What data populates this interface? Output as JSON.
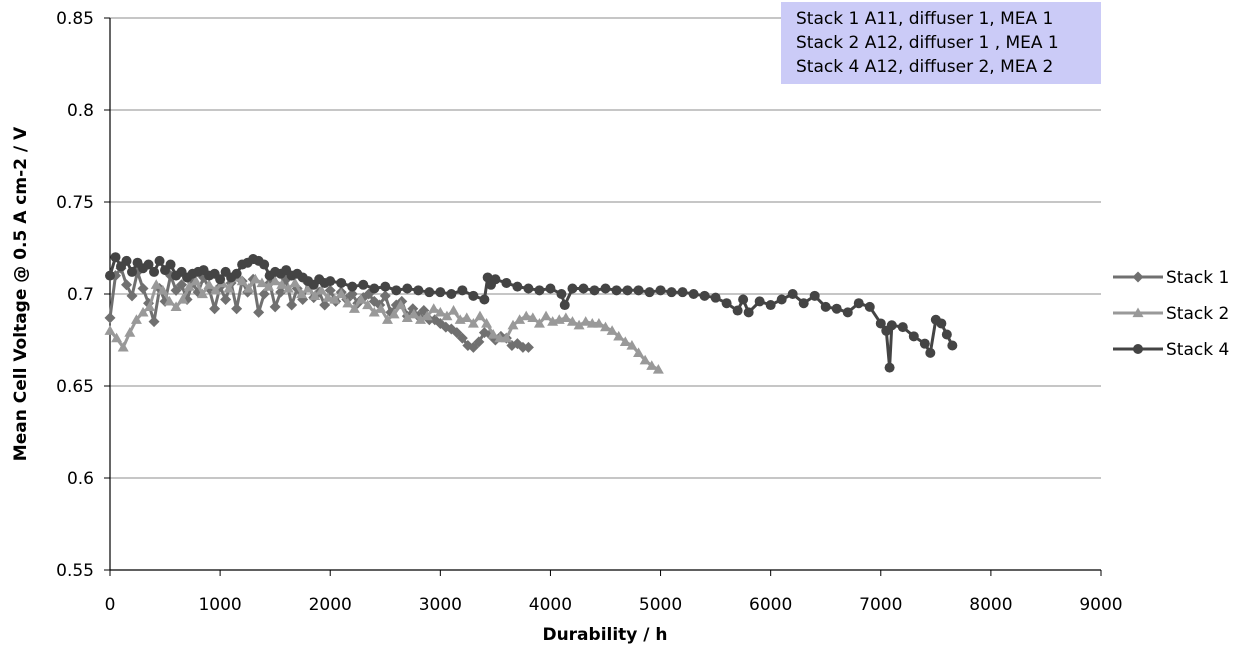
{
  "chart_data": {
    "type": "line",
    "title": "",
    "xlabel": "Durability / h",
    "ylabel": "Mean Cell Voltage @ 0.5 A cm-2 / V",
    "xlim": [
      0,
      9000
    ],
    "ylim": [
      0.55,
      0.85
    ],
    "xticks": [
      0,
      1000,
      2000,
      3000,
      4000,
      5000,
      6000,
      7000,
      8000,
      9000
    ],
    "yticks": [
      "0.55",
      "0.6",
      "0.65",
      "0.7",
      "0.75",
      "0.8",
      "0.85"
    ],
    "grid": "horizontal",
    "legend_position": "right",
    "annotation": [
      "Stack 1 A11, diffuser 1, MEA 1",
      "Stack 2 A12, diffuser 1 , MEA 1",
      "Stack 4 A12, diffuser 2, MEA 2"
    ],
    "series": [
      {
        "name": "Stack 1",
        "marker": "diamond",
        "color": "#707070",
        "x": [
          0,
          50,
          100,
          150,
          200,
          250,
          300,
          350,
          400,
          450,
          500,
          550,
          600,
          650,
          700,
          750,
          800,
          850,
          900,
          950,
          1000,
          1050,
          1100,
          1150,
          1200,
          1250,
          1300,
          1350,
          1400,
          1450,
          1500,
          1550,
          1600,
          1650,
          1700,
          1750,
          1800,
          1850,
          1900,
          1950,
          2000,
          2050,
          2100,
          2150,
          2200,
          2250,
          2300,
          2350,
          2400,
          2450,
          2500,
          2550,
          2600,
          2650,
          2700,
          2750,
          2800,
          2850,
          2900,
          2950,
          3000,
          3050,
          3100,
          3150,
          3200,
          3250,
          3300,
          3350,
          3400,
          3450,
          3500,
          3550,
          3600,
          3650,
          3700,
          3750,
          3800
        ],
        "values": [
          0.687,
          0.71,
          0.714,
          0.705,
          0.699,
          0.712,
          0.703,
          0.695,
          0.685,
          0.703,
          0.696,
          0.71,
          0.702,
          0.705,
          0.697,
          0.706,
          0.701,
          0.709,
          0.703,
          0.692,
          0.704,
          0.697,
          0.706,
          0.692,
          0.707,
          0.701,
          0.708,
          0.69,
          0.7,
          0.706,
          0.693,
          0.701,
          0.708,
          0.694,
          0.703,
          0.697,
          0.706,
          0.698,
          0.701,
          0.694,
          0.702,
          0.696,
          0.701,
          0.697,
          0.7,
          0.695,
          0.698,
          0.7,
          0.696,
          0.694,
          0.699,
          0.69,
          0.694,
          0.696,
          0.688,
          0.692,
          0.688,
          0.691,
          0.686,
          0.686,
          0.684,
          0.682,
          0.681,
          0.679,
          0.676,
          0.672,
          0.671,
          0.674,
          0.679,
          0.678,
          0.675,
          0.677,
          0.676,
          0.672,
          0.673,
          0.671,
          0.671
        ]
      },
      {
        "name": "Stack 2",
        "marker": "triangle",
        "color": "#999999",
        "x": [
          0,
          60,
          120,
          180,
          240,
          300,
          360,
          420,
          480,
          540,
          600,
          660,
          720,
          780,
          840,
          900,
          960,
          1020,
          1080,
          1140,
          1200,
          1260,
          1320,
          1380,
          1440,
          1500,
          1560,
          1620,
          1680,
          1740,
          1800,
          1860,
          1920,
          1980,
          2040,
          2100,
          2160,
          2220,
          2280,
          2340,
          2400,
          2460,
          2520,
          2580,
          2640,
          2700,
          2760,
          2820,
          2880,
          2940,
          3000,
          3060,
          3120,
          3180,
          3240,
          3300,
          3360,
          3420,
          3480,
          3540,
          3600,
          3660,
          3720,
          3780,
          3840,
          3900,
          3960,
          4020,
          4080,
          4140,
          4200,
          4260,
          4320,
          4380,
          4440,
          4500,
          4560,
          4620,
          4680,
          4740,
          4800,
          4860,
          4920,
          4980
        ],
        "values": [
          0.68,
          0.676,
          0.671,
          0.679,
          0.686,
          0.69,
          0.693,
          0.705,
          0.702,
          0.696,
          0.693,
          0.697,
          0.704,
          0.707,
          0.7,
          0.705,
          0.702,
          0.706,
          0.703,
          0.709,
          0.707,
          0.703,
          0.708,
          0.706,
          0.704,
          0.707,
          0.705,
          0.703,
          0.706,
          0.7,
          0.703,
          0.699,
          0.702,
          0.698,
          0.697,
          0.7,
          0.695,
          0.692,
          0.697,
          0.694,
          0.69,
          0.692,
          0.686,
          0.689,
          0.694,
          0.687,
          0.689,
          0.686,
          0.688,
          0.692,
          0.69,
          0.688,
          0.691,
          0.686,
          0.687,
          0.684,
          0.688,
          0.684,
          0.678,
          0.676,
          0.676,
          0.683,
          0.686,
          0.688,
          0.687,
          0.684,
          0.688,
          0.685,
          0.686,
          0.687,
          0.685,
          0.683,
          0.685,
          0.684,
          0.684,
          0.682,
          0.68,
          0.677,
          0.674,
          0.672,
          0.668,
          0.664,
          0.661,
          0.659
        ]
      },
      {
        "name": "Stack 4",
        "marker": "circle",
        "color": "#444444",
        "x": [
          0,
          50,
          100,
          150,
          200,
          250,
          300,
          350,
          400,
          450,
          500,
          550,
          600,
          650,
          700,
          750,
          800,
          850,
          900,
          950,
          1000,
          1050,
          1100,
          1150,
          1200,
          1250,
          1300,
          1350,
          1400,
          1450,
          1500,
          1550,
          1600,
          1650,
          1700,
          1750,
          1800,
          1850,
          1900,
          1950,
          2000,
          2100,
          2200,
          2300,
          2400,
          2500,
          2600,
          2700,
          2800,
          2900,
          3000,
          3100,
          3200,
          3300,
          3400,
          3430,
          3460,
          3500,
          3600,
          3700,
          3800,
          3900,
          4000,
          4100,
          4130,
          4200,
          4300,
          4400,
          4500,
          4600,
          4700,
          4800,
          4900,
          5000,
          5100,
          5200,
          5300,
          5400,
          5500,
          5600,
          5700,
          5750,
          5800,
          5900,
          6000,
          6100,
          6200,
          6300,
          6400,
          6500,
          6600,
          6700,
          6800,
          6900,
          7000,
          7050,
          7080,
          7100,
          7200,
          7300,
          7400,
          7450,
          7500,
          7550,
          7600,
          7650
        ],
        "values": [
          0.71,
          0.72,
          0.715,
          0.718,
          0.712,
          0.717,
          0.714,
          0.716,
          0.712,
          0.718,
          0.713,
          0.716,
          0.71,
          0.712,
          0.709,
          0.711,
          0.712,
          0.713,
          0.71,
          0.711,
          0.708,
          0.712,
          0.709,
          0.711,
          0.716,
          0.717,
          0.719,
          0.718,
          0.716,
          0.71,
          0.712,
          0.711,
          0.713,
          0.71,
          0.711,
          0.709,
          0.707,
          0.705,
          0.708,
          0.706,
          0.707,
          0.706,
          0.704,
          0.705,
          0.703,
          0.704,
          0.702,
          0.703,
          0.702,
          0.701,
          0.701,
          0.7,
          0.702,
          0.699,
          0.697,
          0.709,
          0.705,
          0.708,
          0.706,
          0.704,
          0.703,
          0.702,
          0.703,
          0.7,
          0.694,
          0.703,
          0.703,
          0.702,
          0.703,
          0.702,
          0.702,
          0.702,
          0.701,
          0.702,
          0.701,
          0.701,
          0.7,
          0.699,
          0.698,
          0.695,
          0.691,
          0.697,
          0.69,
          0.696,
          0.694,
          0.697,
          0.7,
          0.695,
          0.699,
          0.693,
          0.692,
          0.69,
          0.695,
          0.693,
          0.684,
          0.68,
          0.66,
          0.683,
          0.682,
          0.677,
          0.673,
          0.668,
          0.686,
          0.684,
          0.678,
          0.672
        ]
      }
    ]
  }
}
